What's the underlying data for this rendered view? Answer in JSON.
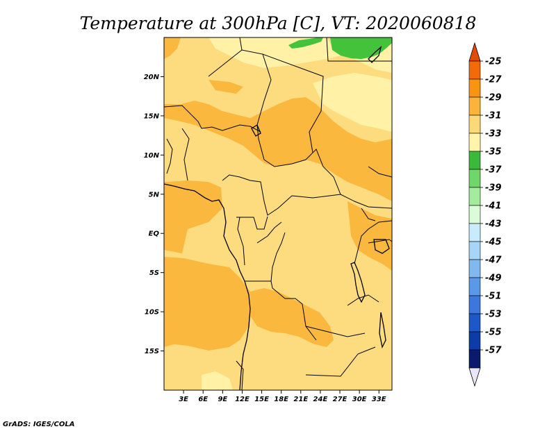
{
  "title": "Temperature at 300hPa [C], VT: 2020060818",
  "credit": "GrADS: IGES/COLA",
  "chart_data": {
    "type": "heatmap",
    "variable": "Temperature at 300hPa",
    "units": "C",
    "valid_time": "2020060818",
    "x_axis": {
      "ticks": [
        "3E",
        "6E",
        "9E",
        "12E",
        "15E",
        "18E",
        "21E",
        "24E",
        "27E",
        "30E",
        "33E"
      ],
      "values": [
        3,
        6,
        9,
        12,
        15,
        18,
        21,
        24,
        27,
        30,
        33
      ],
      "range": [
        0,
        35
      ]
    },
    "y_axis": {
      "ticks": [
        "15S",
        "10S",
        "5S",
        "EQ",
        "5N",
        "10N",
        "15N",
        "20N"
      ],
      "values": [
        -15,
        -10,
        -5,
        0,
        5,
        10,
        15,
        20
      ],
      "range": [
        -20,
        25
      ]
    },
    "colorbar": {
      "labels": [
        "-25",
        "-27",
        "-29",
        "-31",
        "-33",
        "-35",
        "-37",
        "-39",
        "-41",
        "-43",
        "-45",
        "-47",
        "-49",
        "-51",
        "-53",
        "-55",
        "-57"
      ],
      "colors": [
        "#e34a06",
        "#f36a08",
        "#f79410",
        "#fbb33a",
        "#fdd878",
        "#fff4a8",
        "#3cb83a",
        "#6ed66a",
        "#a2ec9c",
        "#dafcd6",
        "#c8ecfc",
        "#a8d4f8",
        "#80b8f0",
        "#5a98e8",
        "#3c78dc",
        "#1c58c8",
        "#0c3ca8",
        "#0a1a6c",
        "#e8e6f8"
      ]
    }
  }
}
